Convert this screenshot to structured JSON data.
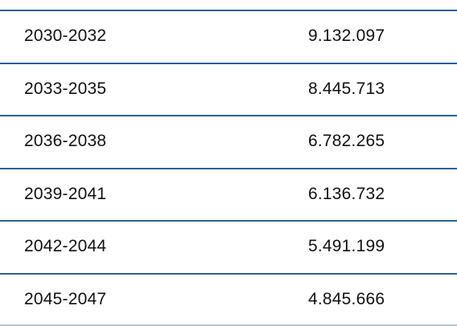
{
  "table": {
    "rows": [
      [
        "2030-2032",
        "9.132.097"
      ],
      [
        "2033-2035",
        "8.445.713"
      ],
      [
        "2036-2038",
        "6.782.265"
      ],
      [
        "2039-2041",
        "6.136.732"
      ],
      [
        "2042-2044",
        "5.491.199"
      ],
      [
        "2045-2047",
        "4.845.666"
      ]
    ]
  }
}
